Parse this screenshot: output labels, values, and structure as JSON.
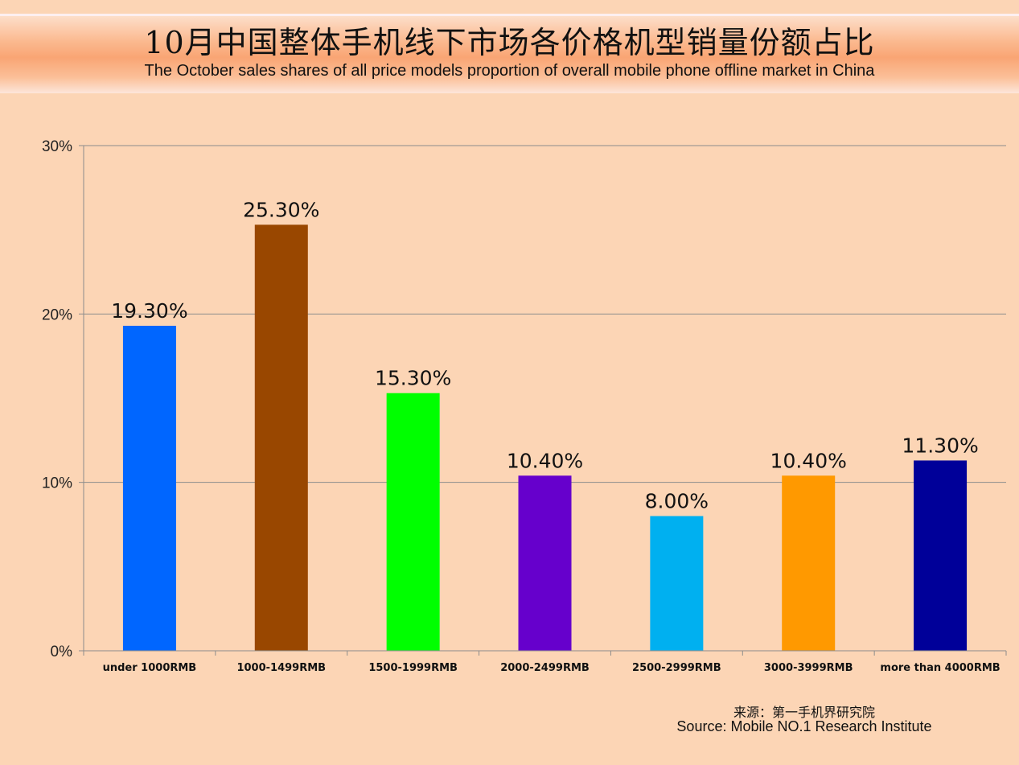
{
  "title_cn": "10月中国整体手机线下市场各价格机型销量份额占比",
  "title_en": "The October sales shares of all price models proportion of overall mobile phone offline market in China",
  "source_cn": "来源：第一手机界研究院",
  "source_en": "Source: Mobile NO.1 Research Institute",
  "chart_data": {
    "type": "bar",
    "categories": [
      "under 1000RMB",
      "1000-1499RMB",
      "1500-1999RMB",
      "2000-2499RMB",
      "2500-2999RMB",
      "3000-3999RMB",
      "more than 4000RMB"
    ],
    "values": [
      19.3,
      25.3,
      15.3,
      10.4,
      8.0,
      10.4,
      11.3
    ],
    "data_labels": [
      "19.30%",
      "25.30%",
      "15.30%",
      "10.40%",
      "8.00%",
      "10.40%",
      "11.30%"
    ],
    "colors": [
      "#0066ff",
      "#994700",
      "#00ff00",
      "#6600cc",
      "#00b0f0",
      "#ff9900",
      "#000099"
    ],
    "ylim": [
      0,
      30
    ],
    "yticks": [
      "0%",
      "10%",
      "20%",
      "30%"
    ],
    "ytick_values": [
      0,
      10,
      20,
      30
    ],
    "grid": true,
    "legend": "none"
  }
}
